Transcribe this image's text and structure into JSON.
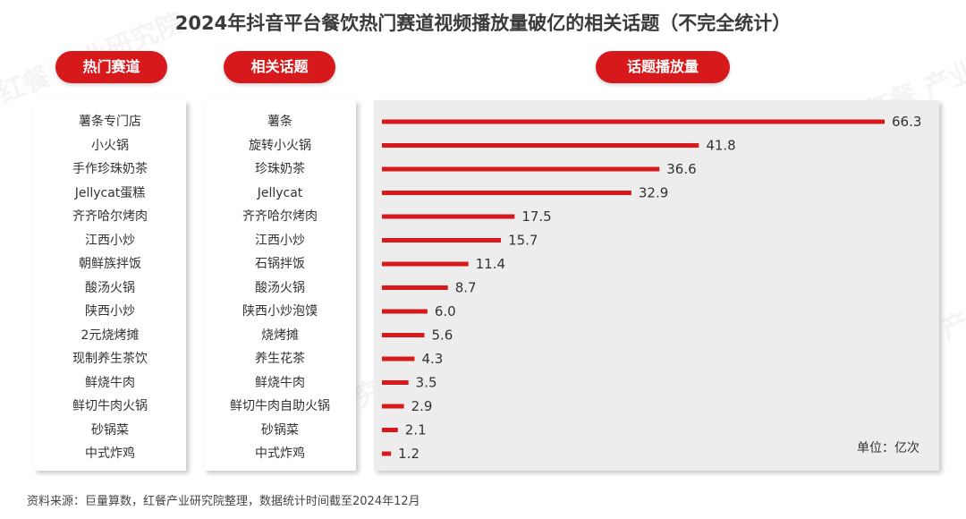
{
  "title": "2024年抖音平台餐饮热门赛道视频播放量破亿的相关话题（不完全统计）",
  "headers": {
    "track": "热门赛道",
    "topic": "相关话题",
    "views": "话题播放量"
  },
  "tracks": [
    "薯条专门店",
    "小火锅",
    "手作珍珠奶茶",
    "Jellycat蛋糕",
    "齐齐哈尔烤肉",
    "江西小炒",
    "朝鲜族拌饭",
    "酸汤火锅",
    "陕西小炒",
    "2元烧烤摊",
    "现制养生茶饮",
    "鲜烧牛肉",
    "鲜切牛肉火锅",
    "砂锅菜",
    "中式炸鸡"
  ],
  "chart_data": {
    "type": "bar",
    "orientation": "horizontal",
    "categories": [
      "薯条",
      "旋转小火锅",
      "珍珠奶茶",
      "Jellycat",
      "齐齐哈尔烤肉",
      "江西小炒",
      "石锅拌饭",
      "酸汤火锅",
      "陕西小炒泡馍",
      "烧烤摊",
      "养生花茶",
      "鲜烧牛肉",
      "鲜切牛肉自助火锅",
      "砂锅菜",
      "中式炸鸡"
    ],
    "values": [
      66.3,
      41.8,
      36.6,
      32.9,
      17.5,
      15.7,
      11.4,
      8.7,
      6.0,
      5.6,
      4.3,
      3.5,
      2.9,
      2.1,
      1.2
    ],
    "labels": [
      "66.3",
      "41.8",
      "36.6",
      "32.9",
      "17.5",
      "15.7",
      "11.4",
      "8.7",
      "6.0",
      "5.6",
      "4.3",
      "3.5",
      "2.9",
      "2.1",
      "1.2"
    ],
    "bar_color": "#d7191c",
    "unit": "单位：亿次"
  },
  "source": "资料来源：巨量算数，红餐产业研究院整理，数据统计时间截至2024年12月",
  "watermark": "红餐 产业研究院"
}
